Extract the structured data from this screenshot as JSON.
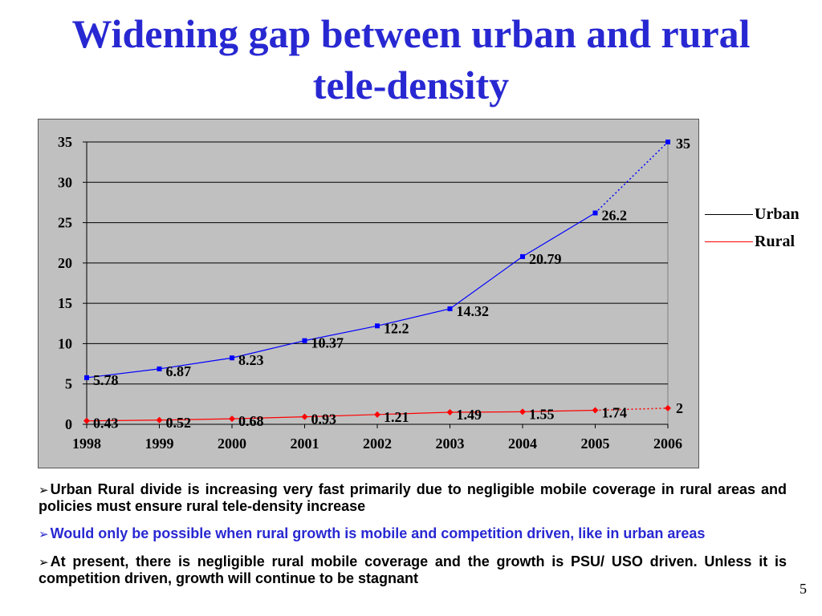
{
  "title": "Widening gap between urban and rural tele-density",
  "chart_data": {
    "type": "line",
    "x": [
      "1998",
      "1999",
      "2000",
      "2001",
      "2002",
      "2003",
      "2004",
      "2005",
      "2006"
    ],
    "series": [
      {
        "name": "Urban",
        "color": "#0000ff",
        "values": [
          5.78,
          6.87,
          8.23,
          10.37,
          12.2,
          14.32,
          20.79,
          26.2,
          35
        ],
        "labels": [
          "5.78",
          "6.87",
          "8.23",
          "10.37",
          "12.2",
          "14.32",
          "20.79",
          "26.2",
          "35"
        ],
        "projected_from_index": 7
      },
      {
        "name": "Rural",
        "color": "#ff0000",
        "values": [
          0.43,
          0.52,
          0.68,
          0.93,
          1.21,
          1.49,
          1.55,
          1.74,
          2
        ],
        "labels": [
          "0.43",
          "0.52",
          "0.68",
          "0.93",
          "1.21",
          "1.49",
          "1.55",
          "1.74",
          "2"
        ],
        "projected_from_index": 7
      }
    ],
    "ylim": [
      0,
      35
    ],
    "yticks": [
      "0",
      "5",
      "10",
      "15",
      "20",
      "25",
      "30",
      "35"
    ],
    "grid": true,
    "legend": "right",
    "plot_background": "#c0c0c0"
  },
  "bullets": [
    {
      "text": "Urban Rural divide is increasing very fast primarily due to negligible mobile coverage in rural areas and policies must ensure rural tele-density increase",
      "color": "#000000"
    },
    {
      "text": "Would only be possible when rural growth is mobile and competition driven, like in urban areas",
      "color": "#2828d2"
    },
    {
      "text": "At present, there is negligible rural mobile coverage and the growth is PSU/ USO driven. Unless it is competition driven, growth will continue to be stagnant",
      "color": "#000000"
    }
  ],
  "bullet_symbol": "➢",
  "page_number": "5"
}
